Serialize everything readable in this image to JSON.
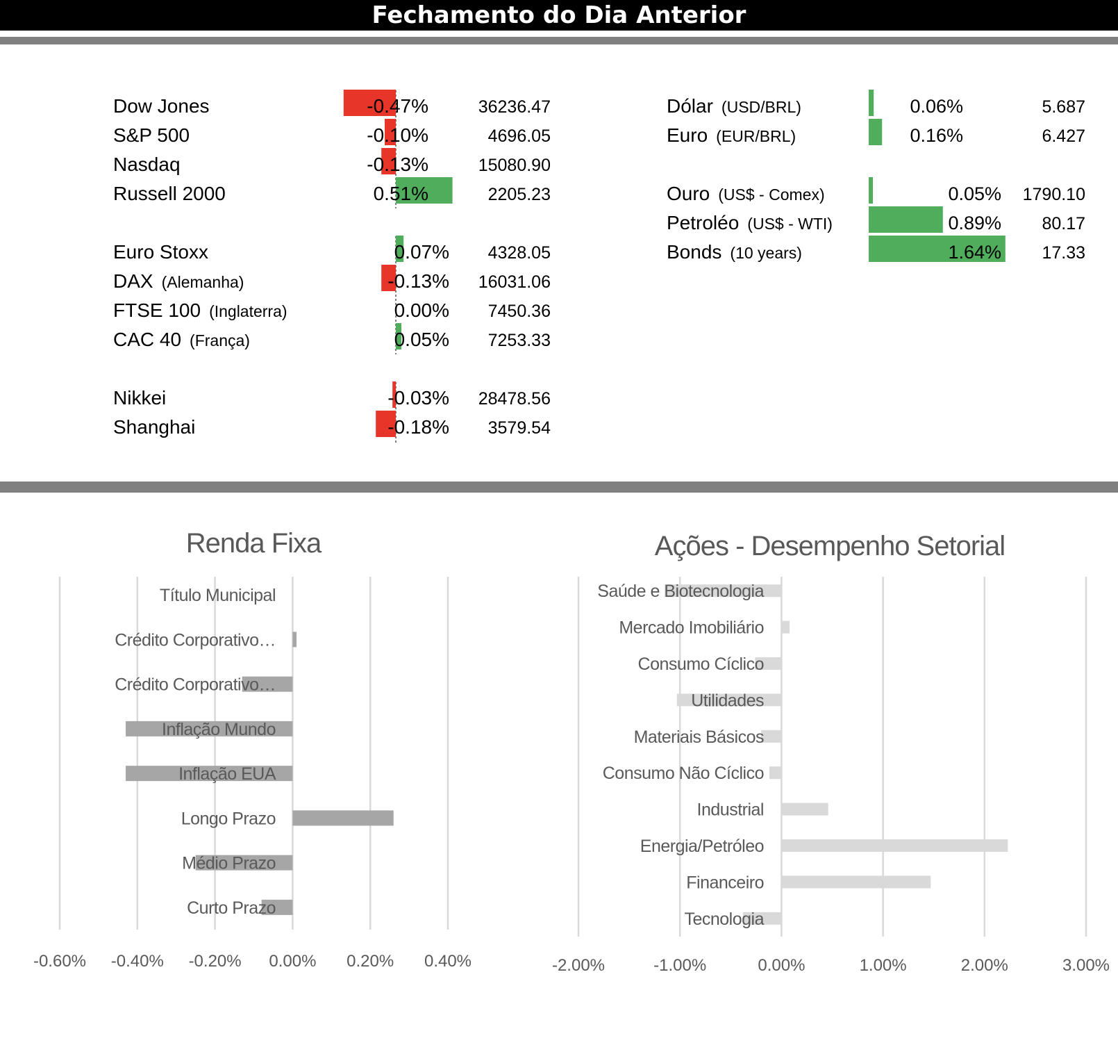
{
  "header": {
    "title": "Fechamento do Dia Anterior"
  },
  "colors": {
    "positive": "#4fad5b",
    "negative": "#e8352a",
    "renda_bar": "#a6a6a6",
    "setor_bar": "#d9d9d9",
    "grid": "#d9d9d9",
    "axis_text": "#595959"
  },
  "quotes_left": [
    {
      "name": "Dow Jones",
      "sub": "",
      "pct": -0.47,
      "pct_label": "-0.47%",
      "value": "36236.47"
    },
    {
      "name": "S&P 500",
      "sub": "",
      "pct": -0.1,
      "pct_label": "-0.10%",
      "value": "4696.05"
    },
    {
      "name": "Nasdaq",
      "sub": "",
      "pct": -0.13,
      "pct_label": "-0.13%",
      "value": "15080.90"
    },
    {
      "name": "Russell 2000",
      "sub": "",
      "pct": 0.51,
      "pct_label": "0.51%",
      "value": "2205.23"
    },
    {
      "name": "Euro Stoxx",
      "sub": "",
      "pct": 0.07,
      "pct_label": "0.07%",
      "value": "4328.05"
    },
    {
      "name": "DAX",
      "sub": "(Alemanha)",
      "pct": -0.13,
      "pct_label": "-0.13%",
      "value": "16031.06"
    },
    {
      "name": "FTSE 100",
      "sub": "(Inglaterra)",
      "pct": 0.0,
      "pct_label": "0.00%",
      "value": "7450.36"
    },
    {
      "name": "CAC 40",
      "sub": "(França)",
      "pct": 0.05,
      "pct_label": "0.05%",
      "value": "7253.33"
    },
    {
      "name": "Nikkei",
      "sub": "",
      "pct": -0.03,
      "pct_label": "-0.03%",
      "value": "28478.56"
    },
    {
      "name": "Shanghai",
      "sub": "",
      "pct": -0.18,
      "pct_label": "-0.18%",
      "value": "3579.54"
    }
  ],
  "quotes_right": [
    {
      "name": "Dólar",
      "sub": "(USD/BRL)",
      "pct": 0.06,
      "pct_label": "0.06%",
      "value": "5.687"
    },
    {
      "name": "Euro",
      "sub": "(EUR/BRL)",
      "pct": 0.16,
      "pct_label": "0.16%",
      "value": "6.427"
    },
    {
      "name": "Ouro",
      "sub": "(US$ - Comex)",
      "pct": 0.05,
      "pct_label": "0.05%",
      "value": "1790.10"
    },
    {
      "name": "Petroléo",
      "sub": "(US$ - WTI)",
      "pct": 0.89,
      "pct_label": "0.89%",
      "value": "80.17"
    },
    {
      "name": "Bonds",
      "sub": "(10 years)",
      "pct": 1.64,
      "pct_label": "1.64%",
      "value": "17.33"
    }
  ],
  "chart_data": [
    {
      "type": "bar",
      "orientation": "horizontal",
      "title": "Renda Fixa",
      "categories": [
        "Título Municipal",
        "Crédito Corporativo…",
        "Crédito Corporativo…",
        "Inflação Mundo",
        "Inflação EUA",
        "Longo Prazo",
        "Médio Prazo",
        "Curto Prazo"
      ],
      "values": [
        0.0,
        0.01,
        -0.13,
        -0.43,
        -0.43,
        0.26,
        -0.25,
        -0.08
      ],
      "xlim": [
        -0.6,
        0.4
      ],
      "ticks": [
        -0.6,
        -0.4,
        -0.2,
        0.0,
        0.2,
        0.4
      ],
      "tick_labels": [
        "-0.60%",
        "-0.40%",
        "-0.20%",
        "0.00%",
        "0.20%",
        "0.40%"
      ],
      "grid": true
    },
    {
      "type": "bar",
      "orientation": "horizontal",
      "title": "Ações - Desempenho Setorial",
      "categories": [
        "Saúde e Biotecnologia",
        "Mercado Imobiliário",
        "Consumo Cíclico",
        "Utilidades",
        "Materiais Básicos",
        "Consumo Não Cíclico",
        "Industrial",
        "Energia/Petróleo",
        "Financeiro",
        "Tecnologia"
      ],
      "values": [
        -1.15,
        0.08,
        -0.26,
        -1.03,
        -0.2,
        -0.12,
        0.46,
        2.23,
        1.47,
        -0.38
      ],
      "xlim": [
        -2.0,
        3.0
      ],
      "ticks": [
        -2,
        -1,
        0,
        1,
        2,
        3
      ],
      "tick_labels": [
        "-2.00%",
        "-1.00%",
        "0.00%",
        "1.00%",
        "2.00%",
        "3.00%"
      ],
      "grid": true
    }
  ]
}
